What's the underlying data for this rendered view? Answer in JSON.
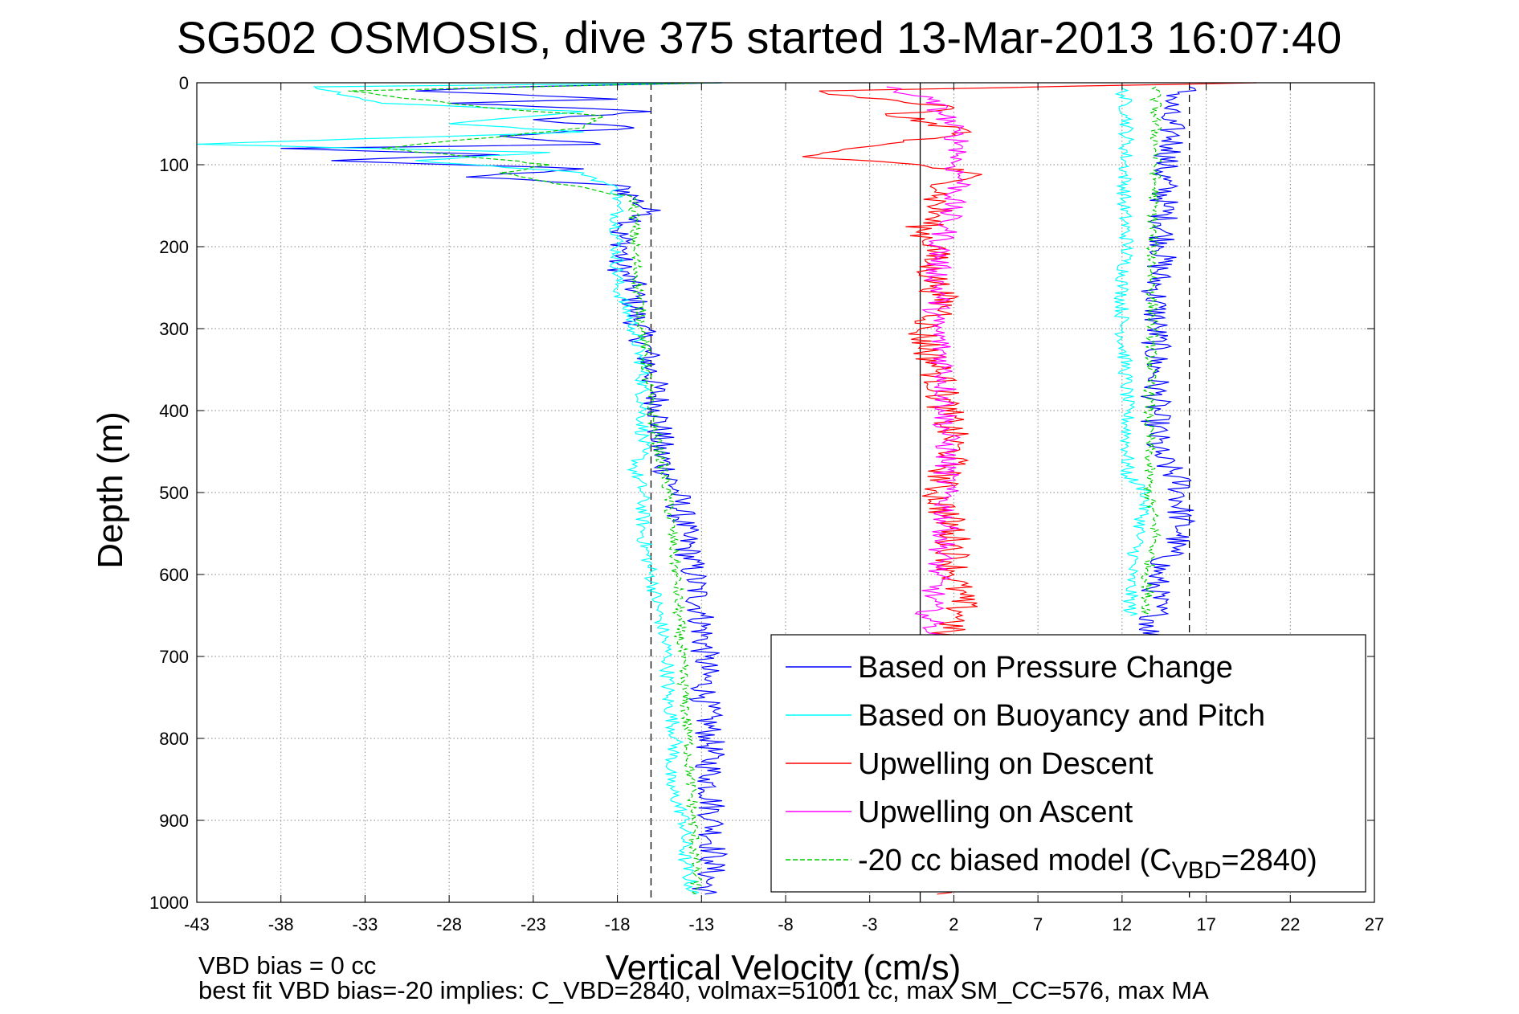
{
  "chart_data": {
    "type": "line",
    "title": "SG502 OSMOSIS, dive 375 started 13-Mar-2013 16:07:40",
    "xlabel": "Vertical Velocity (cm/s)",
    "ylabel": "Depth (m)",
    "xlim": [
      -43,
      27
    ],
    "ylim": [
      0,
      1000
    ],
    "y_reversed": true,
    "grid": true,
    "x_ticks": [
      "-43",
      "-38",
      "-33",
      "-28",
      "-23",
      "-18",
      "-13",
      "-8",
      "-3",
      "2",
      "7",
      "12",
      "17",
      "22",
      "27"
    ],
    "y_ticks": [
      "0",
      "100",
      "200",
      "300",
      "400",
      "500",
      "600",
      "700",
      "800",
      "900",
      "1000"
    ],
    "reference_lines": [
      {
        "type": "solid",
        "x": 0,
        "color": "#000000"
      },
      {
        "type": "dashed",
        "x": -16,
        "color": "#000000"
      },
      {
        "type": "dashed",
        "x": 16,
        "color": "#000000"
      }
    ],
    "legend_position": "bottom-right",
    "series": [
      {
        "name": "Based on Pressure Change",
        "color": "#0000ff",
        "style": "solid",
        "descent": [
          [
            -11.8,
            0
          ],
          [
            -24,
            5
          ],
          [
            -30,
            10
          ],
          [
            -18,
            20
          ],
          [
            -28,
            25
          ],
          [
            -16,
            35
          ],
          [
            -23,
            45
          ],
          [
            -17,
            55
          ],
          [
            -25,
            65
          ],
          [
            -19,
            75
          ],
          [
            -38,
            80
          ],
          [
            -25,
            88
          ],
          [
            -35,
            95
          ],
          [
            -20,
            105
          ],
          [
            -27,
            115
          ],
          [
            -18,
            125
          ],
          [
            -17,
            140
          ],
          [
            -16,
            160
          ],
          [
            -18,
            180
          ],
          [
            -17.5,
            200
          ],
          [
            -18,
            220
          ],
          [
            -17,
            250
          ],
          [
            -17,
            280
          ],
          [
            -16.5,
            310
          ],
          [
            -16,
            350
          ],
          [
            -15.5,
            400
          ],
          [
            -15.5,
            450
          ],
          [
            -14.5,
            500
          ],
          [
            -14,
            550
          ],
          [
            -13.5,
            600
          ],
          [
            -13,
            650
          ],
          [
            -12.8,
            700
          ],
          [
            -12.8,
            750
          ],
          [
            -12.5,
            800
          ],
          [
            -12.5,
            850
          ],
          [
            -12.3,
            900
          ],
          [
            -12.3,
            950
          ],
          [
            -12.8,
            990
          ]
        ],
        "ascent": [
          [
            16,
            5
          ],
          [
            15,
            20
          ],
          [
            14.5,
            40
          ],
          [
            15,
            60
          ],
          [
            15,
            80
          ],
          [
            14.5,
            100
          ],
          [
            14.5,
            150
          ],
          [
            14.5,
            200
          ],
          [
            14,
            250
          ],
          [
            14,
            300
          ],
          [
            14,
            350
          ],
          [
            14,
            400
          ],
          [
            14,
            450
          ],
          [
            15.5,
            490
          ],
          [
            15.5,
            500
          ],
          [
            15.5,
            550
          ],
          [
            14,
            600
          ],
          [
            14,
            650
          ],
          [
            13.5,
            680
          ]
        ]
      },
      {
        "name": "Based on Buoyancy and Pitch",
        "color": "#00ffff",
        "style": "solid",
        "descent": [
          [
            -11.8,
            0
          ],
          [
            -36,
            5
          ],
          [
            -32,
            25
          ],
          [
            -20,
            35
          ],
          [
            -28,
            50
          ],
          [
            -20,
            60
          ],
          [
            -43,
            75
          ],
          [
            -22,
            85
          ],
          [
            -30,
            95
          ],
          [
            -20,
            110
          ],
          [
            -18,
            130
          ],
          [
            -18,
            150
          ],
          [
            -18,
            200
          ],
          [
            -18,
            250
          ],
          [
            -17,
            300
          ],
          [
            -16.5,
            350
          ],
          [
            -16.5,
            400
          ],
          [
            -16.5,
            450
          ],
          [
            -17,
            470
          ],
          [
            -16.5,
            500
          ],
          [
            -16.5,
            550
          ],
          [
            -16,
            600
          ],
          [
            -15.5,
            650
          ],
          [
            -15,
            700
          ],
          [
            -15,
            750
          ],
          [
            -14.5,
            800
          ],
          [
            -15,
            850
          ],
          [
            -14,
            900
          ],
          [
            -14,
            950
          ],
          [
            -13.5,
            990
          ]
        ],
        "ascent": [
          [
            12,
            5
          ],
          [
            12.3,
            40
          ],
          [
            12.2,
            100
          ],
          [
            12.1,
            150
          ],
          [
            12.3,
            200
          ],
          [
            12,
            250
          ],
          [
            12,
            300
          ],
          [
            12.2,
            350
          ],
          [
            12.3,
            400
          ],
          [
            12.3,
            450
          ],
          [
            12.3,
            480
          ],
          [
            13.5,
            500
          ],
          [
            13,
            550
          ],
          [
            12.5,
            600
          ],
          [
            12.5,
            650
          ]
        ]
      },
      {
        "name": "Upwelling on Descent",
        "color": "#ff0000",
        "style": "solid",
        "points": [
          [
            20,
            0
          ],
          [
            -6,
            10
          ],
          [
            -2,
            20
          ],
          [
            2,
            30
          ],
          [
            -2,
            40
          ],
          [
            1,
            50
          ],
          [
            3,
            60
          ],
          [
            -1,
            70
          ],
          [
            -7,
            90
          ],
          [
            0,
            100
          ],
          [
            3,
            110
          ],
          [
            2,
            120
          ],
          [
            1,
            140
          ],
          [
            1,
            160
          ],
          [
            0,
            180
          ],
          [
            1,
            200
          ],
          [
            0.5,
            220
          ],
          [
            1,
            250
          ],
          [
            1.5,
            280
          ],
          [
            0,
            300
          ],
          [
            1,
            350
          ],
          [
            1.5,
            400
          ],
          [
            2,
            450
          ],
          [
            1,
            500
          ],
          [
            2,
            550
          ],
          [
            2,
            600
          ],
          [
            2.5,
            650
          ],
          [
            1,
            680
          ],
          [
            2,
            700
          ],
          [
            1,
            990
          ]
        ]
      },
      {
        "name": "Upwelling on Ascent",
        "color": "#ff00ff",
        "style": "solid",
        "points": [
          [
            -2,
            5
          ],
          [
            0.5,
            20
          ],
          [
            1.5,
            40
          ],
          [
            2,
            60
          ],
          [
            2.5,
            80
          ],
          [
            2,
            100
          ],
          [
            2.5,
            120
          ],
          [
            1.8,
            150
          ],
          [
            1.5,
            180
          ],
          [
            1.2,
            200
          ],
          [
            1,
            230
          ],
          [
            1.2,
            260
          ],
          [
            0.8,
            290
          ],
          [
            1.2,
            320
          ],
          [
            1.5,
            350
          ],
          [
            1.5,
            400
          ],
          [
            1.6,
            450
          ],
          [
            1.5,
            500
          ],
          [
            1.5,
            550
          ],
          [
            1,
            600
          ],
          [
            0.5,
            650
          ],
          [
            1,
            680
          ]
        ]
      },
      {
        "name": "-20 cc biased model (C_VBD=2840)",
        "color": "#00cc00",
        "style": "dashed",
        "descent": [
          [
            -12,
            0
          ],
          [
            -34,
            10
          ],
          [
            -26,
            30
          ],
          [
            -19,
            40
          ],
          [
            -20,
            55
          ],
          [
            -32,
            80
          ],
          [
            -22,
            100
          ],
          [
            -25,
            110
          ],
          [
            -17,
            140
          ],
          [
            -17,
            200
          ],
          [
            -16.5,
            300
          ],
          [
            -16,
            400
          ],
          [
            -15,
            500
          ],
          [
            -14.5,
            600
          ],
          [
            -14.2,
            700
          ],
          [
            -13.8,
            800
          ],
          [
            -13.5,
            900
          ],
          [
            -13.3,
            990
          ]
        ],
        "ascent": [
          [
            14,
            5
          ],
          [
            14,
            50
          ],
          [
            14,
            100
          ],
          [
            13.8,
            200
          ],
          [
            13.8,
            300
          ],
          [
            13.6,
            400
          ],
          [
            13.6,
            500
          ],
          [
            14,
            550
          ],
          [
            13.5,
            600
          ],
          [
            13.5,
            650
          ]
        ]
      }
    ],
    "legend": [
      {
        "label": "Based on Pressure Change",
        "color": "#0000ff",
        "style": "solid"
      },
      {
        "label": "Based on Buoyancy and Pitch",
        "color": "#00ffff",
        "style": "solid"
      },
      {
        "label": "Upwelling on Descent",
        "color": "#ff0000",
        "style": "solid"
      },
      {
        "label": "Upwelling on Ascent",
        "color": "#ff00ff",
        "style": "solid"
      },
      {
        "label": "-20 cc biased model (C",
        "sub": "VBD",
        "suffix": "=2840)",
        "color": "#00cc00",
        "style": "dashed"
      }
    ]
  },
  "footer": {
    "line1": "VBD bias = 0 cc",
    "line2": "best fit VBD bias=-20 implies: C_VBD=2840, volmax=51001 cc, max SM_CC=576, max MA"
  }
}
